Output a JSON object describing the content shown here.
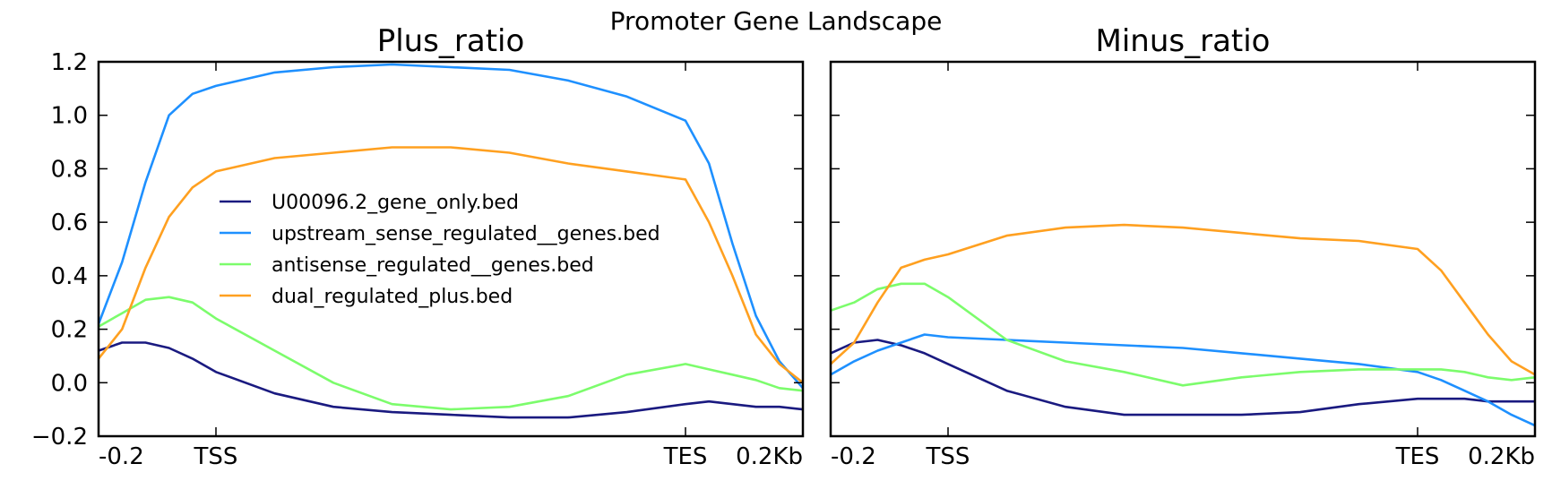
{
  "figure": {
    "title": "Promoter Gene Landscape"
  },
  "colors": {
    "U00096.2_gene_only.bed": "#1a1a80",
    "upstream_sense_regulated__genes.bed": "#1e90ff",
    "antisense_regulated__genes.bed": "#7cfc6c",
    "dual_regulated_plus.bed": "#ffa020"
  },
  "chart_data": [
    {
      "type": "line",
      "title": "Plus_ratio",
      "xlabel": "",
      "ylabel": "",
      "x_ticks": [
        "-0.2",
        "TSS",
        "TES",
        "0.2Kb"
      ],
      "x_tick_positions": [
        0,
        1,
        5,
        6
      ],
      "xlim": [
        0,
        6
      ],
      "ylim": [
        -0.2,
        1.2
      ],
      "y_ticks": [
        "1.2",
        "1.0",
        "0.8",
        "0.6",
        "0.4",
        "0.2",
        "0.0",
        "−0.2"
      ],
      "y_tick_values": [
        1.2,
        1.0,
        0.8,
        0.6,
        0.4,
        0.2,
        0.0,
        -0.2
      ],
      "legend_position": "center-left",
      "x": [
        0,
        0.2,
        0.4,
        0.6,
        0.8,
        1.0,
        1.5,
        2.0,
        2.5,
        3.0,
        3.5,
        4.0,
        4.5,
        5.0,
        5.2,
        5.4,
        5.6,
        5.8,
        6.0
      ],
      "series": [
        {
          "name": "U00096.2_gene_only.bed",
          "values": [
            0.12,
            0.15,
            0.15,
            0.13,
            0.09,
            0.04,
            -0.04,
            -0.09,
            -0.11,
            -0.12,
            -0.13,
            -0.13,
            -0.11,
            -0.08,
            -0.07,
            -0.08,
            -0.09,
            -0.09,
            -0.1
          ]
        },
        {
          "name": "upstream_sense_regulated__genes.bed",
          "values": [
            0.22,
            0.45,
            0.75,
            1.0,
            1.08,
            1.11,
            1.16,
            1.18,
            1.19,
            1.18,
            1.17,
            1.13,
            1.07,
            0.98,
            0.82,
            0.52,
            0.25,
            0.08,
            -0.02
          ]
        },
        {
          "name": "antisense_regulated__genes.bed",
          "values": [
            0.21,
            0.26,
            0.31,
            0.32,
            0.3,
            0.24,
            0.12,
            0.0,
            -0.08,
            -0.1,
            -0.09,
            -0.05,
            0.03,
            0.07,
            0.05,
            0.03,
            0.01,
            -0.02,
            -0.03
          ]
        },
        {
          "name": "dual_regulated_plus.bed",
          "values": [
            0.09,
            0.2,
            0.43,
            0.62,
            0.73,
            0.79,
            0.84,
            0.86,
            0.88,
            0.88,
            0.86,
            0.82,
            0.79,
            0.76,
            0.6,
            0.4,
            0.18,
            0.07,
            0.0
          ]
        }
      ]
    },
    {
      "type": "line",
      "title": "Minus_ratio",
      "xlabel": "",
      "ylabel": "",
      "x_ticks": [
        "-0.2",
        "TSS",
        "TES",
        "0.2Kb"
      ],
      "x_tick_positions": [
        0,
        1,
        5,
        6
      ],
      "xlim": [
        0,
        6
      ],
      "ylim": [
        -0.2,
        1.2
      ],
      "x": [
        0,
        0.2,
        0.4,
        0.6,
        0.8,
        1.0,
        1.5,
        2.0,
        2.5,
        3.0,
        3.5,
        4.0,
        4.5,
        5.0,
        5.2,
        5.4,
        5.6,
        5.8,
        6.0
      ],
      "series": [
        {
          "name": "U00096.2_gene_only.bed",
          "values": [
            0.11,
            0.15,
            0.16,
            0.14,
            0.11,
            0.07,
            -0.03,
            -0.09,
            -0.12,
            -0.12,
            -0.12,
            -0.11,
            -0.08,
            -0.06,
            -0.06,
            -0.06,
            -0.07,
            -0.07,
            -0.07
          ]
        },
        {
          "name": "upstream_sense_regulated__genes.bed",
          "values": [
            0.03,
            0.08,
            0.12,
            0.15,
            0.18,
            0.17,
            0.16,
            0.15,
            0.14,
            0.13,
            0.11,
            0.09,
            0.07,
            0.04,
            0.01,
            -0.03,
            -0.07,
            -0.12,
            -0.16
          ]
        },
        {
          "name": "antisense_regulated__genes.bed",
          "values": [
            0.27,
            0.3,
            0.35,
            0.37,
            0.37,
            0.32,
            0.16,
            0.08,
            0.04,
            -0.01,
            0.02,
            0.04,
            0.05,
            0.05,
            0.05,
            0.04,
            0.02,
            0.01,
            0.02
          ]
        },
        {
          "name": "dual_regulated_plus.bed",
          "values": [
            0.07,
            0.15,
            0.3,
            0.43,
            0.46,
            0.48,
            0.55,
            0.58,
            0.59,
            0.58,
            0.56,
            0.54,
            0.53,
            0.5,
            0.42,
            0.3,
            0.18,
            0.08,
            0.03
          ]
        }
      ]
    }
  ]
}
